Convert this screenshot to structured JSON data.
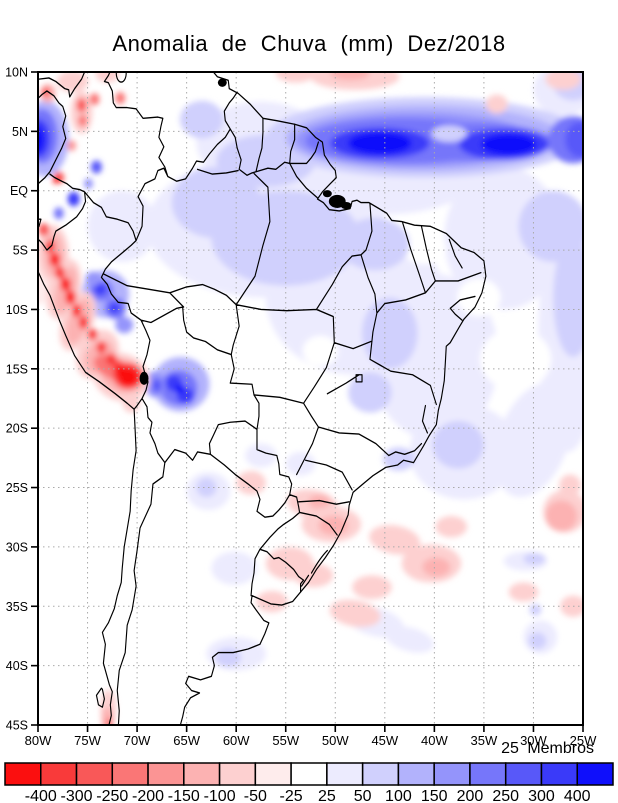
{
  "title": "Anomalia de Chuva (mm) Dez/2018",
  "annotation": {
    "members_label": "25 Membros"
  },
  "axes": {
    "lat_ticks": [
      {
        "label": "10N",
        "value": 10
      },
      {
        "label": "5N",
        "value": 5
      },
      {
        "label": "EQ",
        "value": 0
      },
      {
        "label": "5S",
        "value": -5
      },
      {
        "label": "10S",
        "value": -10
      },
      {
        "label": "15S",
        "value": -15
      },
      {
        "label": "20S",
        "value": -20
      },
      {
        "label": "25S",
        "value": -25
      },
      {
        "label": "30S",
        "value": -30
      },
      {
        "label": "35S",
        "value": -35
      },
      {
        "label": "40S",
        "value": -40
      },
      {
        "label": "45S",
        "value": -45
      }
    ],
    "lon_ticks": [
      {
        "label": "80W",
        "value": -80
      },
      {
        "label": "75W",
        "value": -75
      },
      {
        "label": "70W",
        "value": -70
      },
      {
        "label": "65W",
        "value": -65
      },
      {
        "label": "60W",
        "value": -60
      },
      {
        "label": "55W",
        "value": -55
      },
      {
        "label": "50W",
        "value": -50
      },
      {
        "label": "45W",
        "value": -45
      },
      {
        "label": "40W",
        "value": -40
      },
      {
        "label": "35W",
        "value": -35
      },
      {
        "label": "30W",
        "value": -30
      },
      {
        "label": "25W",
        "value": -25
      }
    ],
    "extent": {
      "lon_min": -80,
      "lon_max": -25,
      "lat_min": -45,
      "lat_max": 10
    },
    "grid_step_deg": 5
  },
  "palette": {
    "r1": "#fb0f0f",
    "r2": "#f93a3a",
    "r3": "#f95858",
    "r4": "#fa7676",
    "r5": "#fb9494",
    "r6": "#fcb2b2",
    "r7": "#fdd0d0",
    "r8": "#feecec",
    "w": "#ffffff",
    "b8": "#ecebfe",
    "b7": "#d0d0fd",
    "b6": "#b2b2fc",
    "b5": "#9494fb",
    "b4": "#7676fa",
    "b3": "#5858f9",
    "b2": "#3a3af9",
    "b1": "#0f0ffb"
  },
  "colorbar": {
    "labels": [
      "-400",
      "-300",
      "-250",
      "-200",
      "-150",
      "-100",
      "-50",
      "-25",
      "25",
      "50",
      "100",
      "150",
      "200",
      "250",
      "300",
      "400"
    ],
    "colors": [
      "r1",
      "r2",
      "r3",
      "r4",
      "r5",
      "r6",
      "r7",
      "r8",
      "w",
      "b8",
      "b7",
      "b6",
      "b5",
      "b4",
      "b3",
      "b2",
      "b1"
    ]
  },
  "anomaly_field": {
    "units": "mm",
    "blobs": [
      [
        -57,
        -3,
        12,
        6,
        "b8"
      ],
      [
        -71.5,
        -3,
        3.5,
        3,
        "b8"
      ],
      [
        -48,
        -9,
        9,
        6.5,
        "b8"
      ],
      [
        -40,
        -14,
        6.5,
        7,
        "b8"
      ],
      [
        -57.5,
        4,
        6.5,
        3.5,
        "b8"
      ],
      [
        -45,
        2,
        10,
        4,
        "b8"
      ],
      [
        -33,
        -4,
        6,
        6,
        "b8"
      ],
      [
        -26.5,
        -12,
        3,
        10,
        "b8"
      ],
      [
        -37,
        -22,
        5.5,
        4,
        "b8"
      ],
      [
        -30,
        -21,
        3.5,
        5,
        "b8",
        20
      ],
      [
        -27,
        8.5,
        3,
        2.2,
        "b8"
      ],
      [
        -57.5,
        -22.3,
        1.6,
        1,
        "b8"
      ],
      [
        -53.5,
        -23,
        1.5,
        1,
        "b8"
      ],
      [
        -62.8,
        -25.3,
        2.2,
        1.6,
        "b8"
      ],
      [
        -60.2,
        -31.8,
        2.3,
        1.4,
        "b8"
      ],
      [
        -60,
        -39,
        3,
        1.4,
        "b8"
      ],
      [
        -46,
        -36.3,
        3,
        1.2,
        "b8",
        15
      ],
      [
        -42.5,
        -37.8,
        2.5,
        1,
        "b8",
        15
      ],
      [
        -30.8,
        -31.2,
        2.2,
        0.8,
        "b8"
      ],
      [
        -29.3,
        -37.6,
        1.7,
        1.4,
        "b8"
      ],
      [
        -66.5,
        6.5,
        3.5,
        2.5,
        "w"
      ],
      [
        -38,
        5.9,
        2.6,
        1.4,
        "w"
      ],
      [
        -31.8,
        -14.2,
        3.6,
        2.6,
        "w"
      ],
      [
        -35.5,
        -9,
        2.2,
        1.6,
        "w"
      ],
      [
        -41,
        -4.9,
        2.2,
        1.3,
        "w"
      ],
      [
        -48.5,
        -20,
        2.5,
        1.8,
        "w"
      ],
      [
        -51.5,
        -13.5,
        1.8,
        1.3,
        "w"
      ],
      [
        -45,
        -13.5,
        1.3,
        1,
        "w"
      ],
      [
        -55,
        -4,
        7.5,
        4,
        "b7"
      ],
      [
        -62,
        -1,
        4.5,
        3,
        "b7"
      ],
      [
        -57,
        2.5,
        5,
        2.2,
        "b7"
      ],
      [
        -63.5,
        6,
        2.2,
        1.6,
        "b7"
      ],
      [
        -46,
        -4.5,
        3.5,
        2.2,
        "b7"
      ],
      [
        -44.5,
        -12,
        2.8,
        3,
        "b7"
      ],
      [
        -28,
        -3,
        3.5,
        3,
        "b7"
      ],
      [
        -26,
        -9,
        2,
        5,
        "b7"
      ],
      [
        -46.5,
        -17,
        2.2,
        1.7,
        "b7"
      ],
      [
        -37.6,
        -21.4,
        2.6,
        2,
        "b7"
      ],
      [
        -43.6,
        -22.6,
        1.6,
        1,
        "b7"
      ],
      [
        -63,
        -25,
        1,
        0.8,
        "b7"
      ],
      [
        -60.8,
        -39.3,
        1.3,
        0.8,
        "b7"
      ],
      [
        -29.9,
        -31,
        1.1,
        0.5,
        "b7"
      ],
      [
        -29.6,
        -37.9,
        0.9,
        0.7,
        "b7"
      ],
      [
        -29.8,
        -35.3,
        0.6,
        0.5,
        "b7"
      ],
      [
        -26,
        9,
        2,
        1.4,
        "b7"
      ],
      [
        -41,
        4.5,
        16,
        3.4,
        "b7"
      ],
      [
        -41,
        4.4,
        14,
        2.8,
        "b6"
      ],
      [
        -42,
        4.3,
        12,
        2.3,
        "b5"
      ],
      [
        -43,
        4.2,
        10,
        1.9,
        "b4"
      ],
      [
        -36,
        4.1,
        8,
        1.6,
        "b4"
      ],
      [
        -38.5,
        4.8,
        1.8,
        0.7,
        "b7"
      ],
      [
        -45.5,
        4,
        5,
        1.3,
        "b2"
      ],
      [
        -33,
        3.9,
        4.5,
        1.3,
        "b2"
      ],
      [
        -45.5,
        4,
        3.2,
        0.95,
        "b1"
      ],
      [
        -32.5,
        3.9,
        2.8,
        0.9,
        "b1"
      ],
      [
        -26,
        4.3,
        2.5,
        2,
        "b4"
      ],
      [
        -25.3,
        4.3,
        1.5,
        1.5,
        "b3"
      ],
      [
        -79.3,
        4.4,
        2.4,
        3.2,
        "b6"
      ],
      [
        -79.6,
        4.6,
        1.6,
        2.3,
        "b4"
      ],
      [
        -79.9,
        4.4,
        1.1,
        1.6,
        "b2"
      ],
      [
        -80.1,
        4.3,
        0.7,
        1.1,
        "b1"
      ],
      [
        -74.1,
        2,
        0.55,
        0.55,
        "b3"
      ],
      [
        -76.4,
        -0.7,
        0.6,
        0.6,
        "b2"
      ],
      [
        -74.9,
        0.6,
        0.45,
        0.45,
        "b5"
      ],
      [
        -77.9,
        -1.9,
        0.5,
        0.5,
        "b4"
      ],
      [
        -73.2,
        -8.7,
        2.4,
        2,
        "b6"
      ],
      [
        -73.6,
        -8.4,
        1.2,
        0.9,
        "b4"
      ],
      [
        -73.7,
        -8.3,
        0.6,
        0.5,
        "b2"
      ],
      [
        -72.2,
        -9.9,
        1.1,
        0.9,
        "b4"
      ],
      [
        -72.3,
        -9.9,
        0.55,
        0.45,
        "b2"
      ],
      [
        -74.4,
        -7.4,
        0.8,
        0.6,
        "b5"
      ],
      [
        -71.3,
        -11.3,
        0.9,
        0.7,
        "b5"
      ],
      [
        -65.6,
        -16.3,
        2.9,
        2.3,
        "b6"
      ],
      [
        -65.8,
        -16.6,
        1.9,
        1.5,
        "b4"
      ],
      [
        -66.3,
        -16.2,
        0.85,
        0.7,
        "b2"
      ],
      [
        -65.1,
        -17.3,
        0.9,
        0.7,
        "b2"
      ],
      [
        -65.7,
        -16.7,
        0.5,
        0.4,
        "b1"
      ],
      [
        -68.2,
        -16.3,
        1,
        1.1,
        "b5"
      ],
      [
        -68,
        -16.4,
        0.5,
        0.6,
        "b3"
      ],
      [
        -79,
        -6.5,
        1.2,
        3.2,
        "r8",
        15
      ],
      [
        -78.5,
        -5.3,
        1.6,
        2.4,
        "r7"
      ],
      [
        -77.4,
        -8.3,
        1.6,
        2.6,
        "r7",
        15
      ],
      [
        -76,
        -11,
        1.6,
        2.6,
        "r7",
        20
      ],
      [
        -74,
        -13.8,
        2,
        2.2,
        "r7",
        30
      ],
      [
        -71.6,
        -15.7,
        2.9,
        2,
        "r7",
        20
      ],
      [
        -70.6,
        -17.8,
        0.9,
        0.9,
        "r7"
      ],
      [
        -78.4,
        -5.4,
        1,
        1.8,
        "r6"
      ],
      [
        -77.2,
        -8.4,
        1,
        2,
        "r6",
        15
      ],
      [
        -75.9,
        -11,
        1,
        2,
        "r6",
        20
      ],
      [
        -73.8,
        -14,
        1.4,
        1.5,
        "r6",
        30
      ],
      [
        -71.5,
        -15.6,
        2.2,
        1.4,
        "r6",
        20
      ],
      [
        -72.5,
        -14.9,
        2,
        0.9,
        "r4",
        25
      ],
      [
        -78.8,
        -4.7,
        0.5,
        0.55,
        "r2"
      ],
      [
        -78.3,
        -5.8,
        0.55,
        0.6,
        "r2"
      ],
      [
        -77.8,
        -6.9,
        0.5,
        0.55,
        "r2"
      ],
      [
        -77.2,
        -7.9,
        0.55,
        0.6,
        "r2"
      ],
      [
        -76.7,
        -9,
        0.55,
        0.6,
        "r2"
      ],
      [
        -76.1,
        -10.1,
        0.5,
        0.55,
        "r2"
      ],
      [
        -75.4,
        -11.1,
        0.5,
        0.55,
        "r2"
      ],
      [
        -74.5,
        -12.1,
        0.5,
        0.5,
        "r2"
      ],
      [
        -73.6,
        -13.2,
        0.5,
        0.5,
        "r2"
      ],
      [
        -72.6,
        -14.2,
        0.55,
        0.5,
        "r2"
      ],
      [
        -71.9,
        -14.9,
        0.5,
        0.45,
        "r2"
      ],
      [
        -70.9,
        -15.6,
        1.5,
        1.1,
        "r2"
      ],
      [
        -78.4,
        -5.7,
        0.35,
        0.4,
        "r1"
      ],
      [
        -77.3,
        -7.8,
        0.35,
        0.4,
        "r1"
      ],
      [
        -76.8,
        -8.9,
        0.35,
        0.4,
        "r1"
      ],
      [
        -76.2,
        -10,
        0.3,
        0.35,
        "r1"
      ],
      [
        -70.9,
        -15.7,
        0.95,
        0.75,
        "r1"
      ],
      [
        -71.7,
        -15.2,
        0.5,
        0.45,
        "r1"
      ],
      [
        -75.6,
        6.6,
        1.1,
        1.8,
        "r7"
      ],
      [
        -76.5,
        9.2,
        1.6,
        0.9,
        "r7"
      ],
      [
        -73,
        9.8,
        1.2,
        0.7,
        "r7"
      ],
      [
        -75.6,
        7.2,
        0.5,
        0.6,
        "r3"
      ],
      [
        -75.5,
        5.9,
        0.45,
        0.5,
        "r4"
      ],
      [
        -74.3,
        7.7,
        0.5,
        0.5,
        "r4"
      ],
      [
        -71.7,
        7.8,
        0.5,
        0.5,
        "r4"
      ],
      [
        -76.6,
        3.8,
        0.45,
        0.45,
        "r5"
      ],
      [
        -77.9,
        1.1,
        0.55,
        0.5,
        "r3"
      ],
      [
        -78.2,
        0.9,
        0.3,
        0.3,
        "r1"
      ],
      [
        -79.4,
        -3.3,
        0.55,
        0.55,
        "r3"
      ],
      [
        -79,
        8.2,
        0.8,
        0.8,
        "r6"
      ],
      [
        -79.2,
        8.3,
        0.4,
        0.4,
        "r3"
      ],
      [
        -48,
        9.6,
        4.5,
        1.1,
        "r7"
      ],
      [
        -48.5,
        9.9,
        2,
        0.6,
        "r6"
      ],
      [
        -54,
        9.9,
        2,
        0.8,
        "r7"
      ],
      [
        -33.7,
        7.3,
        1.1,
        0.8,
        "r7"
      ],
      [
        -27,
        9.4,
        1.8,
        0.9,
        "r7"
      ],
      [
        -52.3,
        -26.4,
        2.6,
        1.2,
        "r7",
        10
      ],
      [
        -51.6,
        -26.2,
        1.1,
        0.6,
        "r6"
      ],
      [
        -50.4,
        -28.1,
        3,
        1.5,
        "r7"
      ],
      [
        -50.2,
        -28.2,
        1.5,
        0.8,
        "r6"
      ],
      [
        -54.6,
        -31.4,
        2.4,
        1.4,
        "r7"
      ],
      [
        -52.2,
        -32.4,
        2,
        1,
        "r7"
      ],
      [
        -56.4,
        -34.6,
        1.6,
        0.9,
        "r7"
      ],
      [
        -58.5,
        -24.6,
        1.5,
        1,
        "r7"
      ],
      [
        -44,
        -29.4,
        2.6,
        1.2,
        "r7",
        10
      ],
      [
        -40.3,
        -31.4,
        3,
        1.6,
        "r7"
      ],
      [
        -39.8,
        -31.7,
        1.4,
        0.8,
        "r6"
      ],
      [
        -46.3,
        -33.4,
        2,
        1,
        "r7"
      ],
      [
        -48,
        -35.6,
        2.6,
        1.1,
        "r7",
        10
      ],
      [
        -38.3,
        -28.3,
        1.6,
        0.9,
        "r7"
      ],
      [
        -26.8,
        -27,
        2.2,
        1.8,
        "r7"
      ],
      [
        -27.2,
        -27.4,
        1.6,
        1.3,
        "r6"
      ],
      [
        -26.3,
        -24.8,
        1.1,
        0.9,
        "r7"
      ],
      [
        -26,
        -35,
        1.3,
        0.9,
        "r7"
      ],
      [
        -31,
        -33.8,
        1.5,
        0.8,
        "r7"
      ],
      [
        -72.9,
        -43.6,
        0.8,
        1.6,
        "r7"
      ],
      [
        -73,
        -44.6,
        0.6,
        1.1,
        "r6"
      ],
      [
        -72.8,
        -44.9,
        0.35,
        0.5,
        "r4"
      ]
    ]
  }
}
